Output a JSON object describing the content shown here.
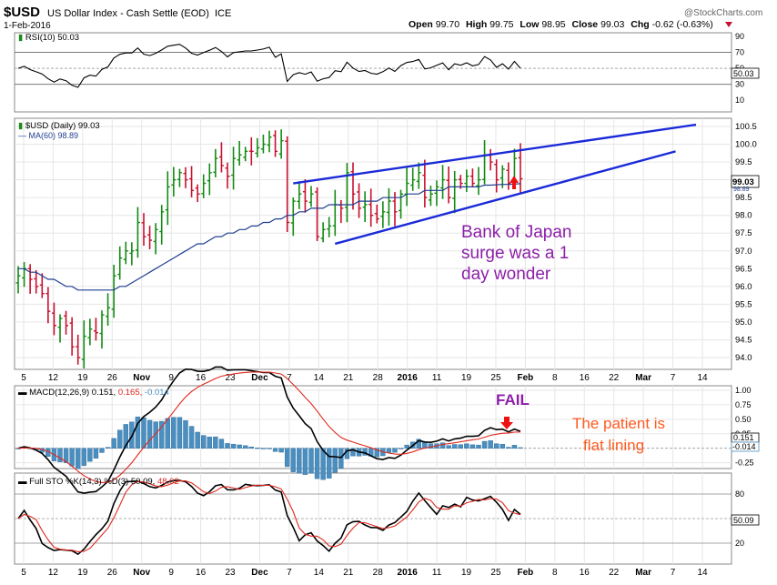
{
  "header": {
    "symbol": "$USD",
    "name": "US Dollar Index - Cash Settle (EOD)",
    "exchange": "ICE",
    "date": "1-Feb-2016",
    "open_label": "Open",
    "open": "99.70",
    "high_label": "High",
    "high": "99.75",
    "low_label": "Low",
    "low": "98.95",
    "close_label": "Close",
    "close": "99.03",
    "chg_label": "Chg",
    "chg": "-0.62 (-0.63%)",
    "watermark": "@StockCharts.com"
  },
  "rsi": {
    "label": "RSI(10) 50.03",
    "value": "50.03",
    "ticks": [
      "90",
      "70",
      "50",
      "30",
      "10"
    ]
  },
  "price": {
    "label": "$USD (Daily) 99.03",
    "ma_label": "MA(60) 98.89",
    "last_label": "99.03",
    "ma_last_label": "98.89",
    "ticks": [
      "100.5",
      "100.0",
      "99.5",
      "99.0",
      "98.5",
      "98.0",
      "97.5",
      "97.0",
      "96.5",
      "96.0",
      "95.5",
      "95.0",
      "94.5",
      "94.0"
    ]
  },
  "x_axis": {
    "labels": [
      "5",
      "12",
      "19",
      "26",
      "Nov",
      "9",
      "16",
      "23",
      "Dec",
      "7",
      "14",
      "21",
      "28",
      "2016",
      "11",
      "19",
      "25",
      "Feb",
      "8",
      "16",
      "22",
      "Mar",
      "7",
      "14"
    ]
  },
  "macd": {
    "label_prefix": "MACD(12,26,9)",
    "v1": "0.151,",
    "v2": "0.165,",
    "v3": "-0.014",
    "last1": "0.151",
    "last2": "-0.014",
    "ticks": [
      "1.00",
      "0.75",
      "0.50",
      "0.25",
      "0.00",
      "-0.25"
    ]
  },
  "sto": {
    "label_prefix": "Full STO %K(14,3) %D(3)",
    "k": "50.09,",
    "d": "48.02",
    "last": "50.09",
    "ticks": [
      "80",
      "50",
      "20"
    ]
  },
  "annotations": {
    "boj": [
      "Bank of Japan",
      "surge was a 1",
      "day wonder"
    ],
    "fail": "FAIL",
    "patient": [
      "The patient is",
      "flat lining"
    ]
  },
  "colors": {
    "up": "#138a13",
    "down": "#c8102e",
    "ma": "#1f3f8f",
    "trend": "#1a2ad8",
    "annot_purple": "#8c1fa8",
    "annot_orange": "#ff5a1f",
    "arrow_red": "#ee1111",
    "macd_hist": "#4a8fc0",
    "signal": "#e0281e"
  },
  "chart_data": {
    "type": "ohlc",
    "title": "$USD US Dollar Index - Cash Settle (EOD) ICE",
    "price_ylim": [
      93.8,
      100.8
    ],
    "x": [
      "2015-10-01",
      "2015-10-02",
      "2015-10-05",
      "2015-10-06",
      "2015-10-07",
      "2015-10-08",
      "2015-10-09",
      "2015-10-12",
      "2015-10-13",
      "2015-10-14",
      "2015-10-15",
      "2015-10-16",
      "2015-10-19",
      "2015-10-20",
      "2015-10-21",
      "2015-10-22",
      "2015-10-23",
      "2015-10-26",
      "2015-10-27",
      "2015-10-28",
      "2015-10-29",
      "2015-10-30",
      "2015-11-02",
      "2015-11-03",
      "2015-11-04",
      "2015-11-05",
      "2015-11-06",
      "2015-11-09",
      "2015-11-10",
      "2015-11-11",
      "2015-11-12",
      "2015-11-13",
      "2015-11-16",
      "2015-11-17",
      "2015-11-18",
      "2015-11-19",
      "2015-11-20",
      "2015-11-23",
      "2015-11-24",
      "2015-11-25",
      "2015-11-26",
      "2015-11-27",
      "2015-11-30",
      "2015-12-01",
      "2015-12-02",
      "2015-12-03",
      "2015-12-04",
      "2015-12-07",
      "2015-12-08",
      "2015-12-09",
      "2015-12-10",
      "2015-12-11",
      "2015-12-14",
      "2015-12-15",
      "2015-12-16",
      "2015-12-17",
      "2015-12-18",
      "2015-12-21",
      "2015-12-22",
      "2015-12-23",
      "2015-12-24",
      "2015-12-28",
      "2015-12-29",
      "2015-12-30",
      "2015-12-31",
      "2016-01-04",
      "2016-01-05",
      "2016-01-06",
      "2016-01-07",
      "2016-01-08",
      "2016-01-11",
      "2016-01-12",
      "2016-01-13",
      "2016-01-14",
      "2016-01-15",
      "2016-01-19",
      "2016-01-20",
      "2016-01-21",
      "2016-01-22",
      "2016-01-25",
      "2016-01-26",
      "2016-01-27",
      "2016-01-28",
      "2016-01-29",
      "2016-02-01"
    ],
    "close": [
      96.3,
      96.5,
      96.2,
      96.0,
      95.8,
      95.3,
      94.9,
      95.1,
      94.9,
      94.3,
      94.0,
      94.6,
      94.8,
      94.7,
      95.2,
      95.4,
      96.3,
      96.8,
      97.0,
      97.0,
      97.8,
      97.4,
      97.3,
      97.6,
      98.1,
      98.8,
      99.0,
      99.2,
      99.0,
      98.7,
      98.6,
      98.9,
      99.2,
      99.6,
      99.4,
      99.1,
      99.6,
      99.7,
      99.8,
      99.8,
      99.9,
      100.0,
      100.2,
      99.8,
      100.1,
      97.8,
      98.4,
      98.6,
      98.4,
      98.6,
      97.4,
      97.6,
      97.7,
      98.3,
      98.2,
      99.2,
      98.6,
      98.2,
      98.3,
      98.0,
      97.9,
      98.1,
      98.4,
      98.1,
      98.6,
      98.9,
      99.0,
      99.2,
      98.5,
      98.6,
      98.8,
      99.0,
      98.5,
      99.0,
      98.9,
      99.1,
      98.9,
      99.0,
      99.7,
      99.5,
      99.0,
      99.3,
      98.9,
      99.6,
      99.03
    ],
    "ma60": [
      96.5,
      96.5,
      96.4,
      96.4,
      96.3,
      96.2,
      96.2,
      96.1,
      96.0,
      96.0,
      95.9,
      95.9,
      95.9,
      95.9,
      95.9,
      95.9,
      95.9,
      96.0,
      96.0,
      96.1,
      96.2,
      96.3,
      96.4,
      96.5,
      96.6,
      96.7,
      96.8,
      96.9,
      97.0,
      97.1,
      97.2,
      97.2,
      97.3,
      97.4,
      97.4,
      97.5,
      97.5,
      97.6,
      97.6,
      97.7,
      97.7,
      97.8,
      97.8,
      97.9,
      97.9,
      98.0,
      98.0,
      98.1,
      98.1,
      98.2,
      98.2,
      98.2,
      98.3,
      98.3,
      98.3,
      98.3,
      98.3,
      98.4,
      98.4,
      98.4,
      98.4,
      98.5,
      98.5,
      98.5,
      98.5,
      98.6,
      98.6,
      98.6,
      98.7,
      98.7,
      98.7,
      98.7,
      98.8,
      98.8,
      98.8,
      98.8,
      98.8,
      98.8,
      98.85,
      98.85,
      98.86,
      98.87,
      98.87,
      98.88,
      98.89
    ],
    "rsi_range": [
      0,
      100
    ],
    "macd_range": [
      -0.35,
      1.0
    ],
    "sto_range": [
      0,
      100
    ],
    "trendlines": [
      {
        "name": "upper",
        "from": [
          "2015-12-04",
          98.9
        ],
        "to": [
          "2016-03-15",
          100.55
        ]
      },
      {
        "name": "lower",
        "from": [
          "2015-12-15",
          97.2
        ],
        "to": [
          "2016-03-10",
          99.8
        ]
      }
    ]
  }
}
